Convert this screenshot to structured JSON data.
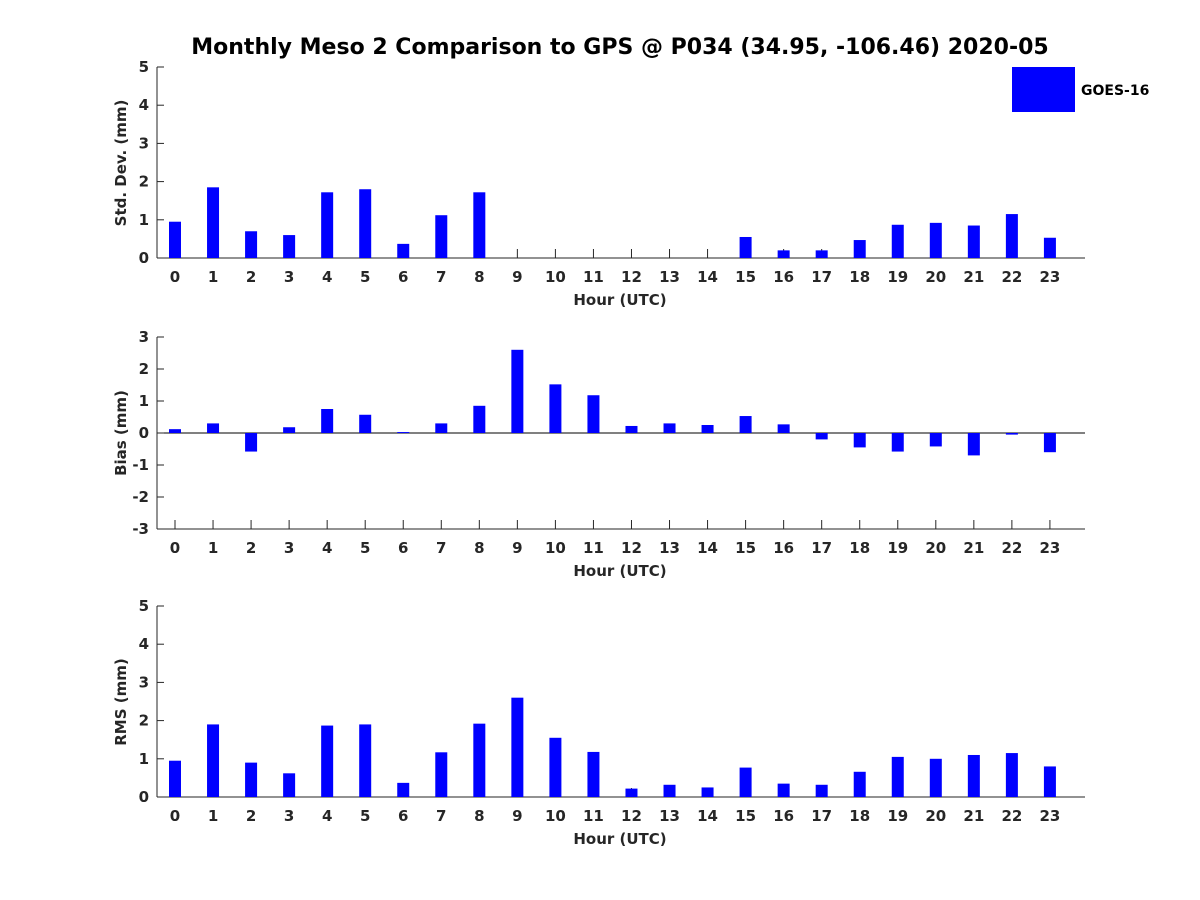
{
  "figure": {
    "title": "Monthly Meso 2 Comparison to GPS @ P034 (34.95, -106.46) 2020-05",
    "bar_color": "#0000ff",
    "legend": {
      "label": "GOES-16",
      "location": "top-right"
    }
  },
  "chart_data": [
    {
      "type": "bar",
      "name": "std-dev",
      "title": "Monthly Meso 2 Comparison to GPS @ P034 (34.95, -106.46) 2020-05",
      "xlabel": "Hour (UTC)",
      "ylabel": "Std. Dev. (mm)",
      "ylim": [
        0,
        5
      ],
      "yticks": [
        0,
        1,
        2,
        3,
        4,
        5
      ],
      "categories": [
        0,
        1,
        2,
        3,
        4,
        5,
        6,
        7,
        8,
        9,
        10,
        11,
        12,
        13,
        14,
        15,
        16,
        17,
        18,
        19,
        20,
        21,
        22,
        23
      ],
      "series": [
        {
          "name": "GOES-16",
          "values": [
            0.95,
            1.85,
            0.7,
            0.6,
            1.72,
            1.8,
            0.37,
            1.12,
            1.72,
            0,
            0,
            0,
            0,
            0,
            0,
            0.55,
            0.2,
            0.2,
            0.47,
            0.87,
            0.92,
            0.85,
            1.15,
            0.53
          ]
        }
      ]
    },
    {
      "type": "bar",
      "name": "bias",
      "xlabel": "Hour (UTC)",
      "ylabel": "Bias (mm)",
      "ylim": [
        -3,
        3
      ],
      "yticks": [
        -3,
        -2,
        -1,
        0,
        1,
        2,
        3
      ],
      "categories": [
        0,
        1,
        2,
        3,
        4,
        5,
        6,
        7,
        8,
        9,
        10,
        11,
        12,
        13,
        14,
        15,
        16,
        17,
        18,
        19,
        20,
        21,
        22,
        23
      ],
      "series": [
        {
          "name": "GOES-16",
          "values": [
            0.12,
            0.3,
            -0.58,
            0.18,
            0.75,
            0.57,
            0.03,
            0.3,
            0.85,
            2.6,
            1.52,
            1.18,
            0.22,
            0.3,
            0.25,
            0.53,
            0.27,
            -0.2,
            -0.45,
            -0.58,
            -0.42,
            -0.7,
            -0.05,
            -0.6
          ]
        }
      ]
    },
    {
      "type": "bar",
      "name": "rms",
      "xlabel": "Hour (UTC)",
      "ylabel": "RMS (mm)",
      "ylim": [
        0,
        5
      ],
      "yticks": [
        0,
        1,
        2,
        3,
        4,
        5
      ],
      "categories": [
        0,
        1,
        2,
        3,
        4,
        5,
        6,
        7,
        8,
        9,
        10,
        11,
        12,
        13,
        14,
        15,
        16,
        17,
        18,
        19,
        20,
        21,
        22,
        23
      ],
      "series": [
        {
          "name": "GOES-16",
          "values": [
            0.95,
            1.9,
            0.9,
            0.62,
            1.87,
            1.9,
            0.37,
            1.17,
            1.92,
            2.6,
            1.55,
            1.18,
            0.22,
            0.32,
            0.25,
            0.77,
            0.35,
            0.32,
            0.66,
            1.05,
            1.0,
            1.1,
            1.15,
            0.8
          ]
        }
      ]
    }
  ]
}
